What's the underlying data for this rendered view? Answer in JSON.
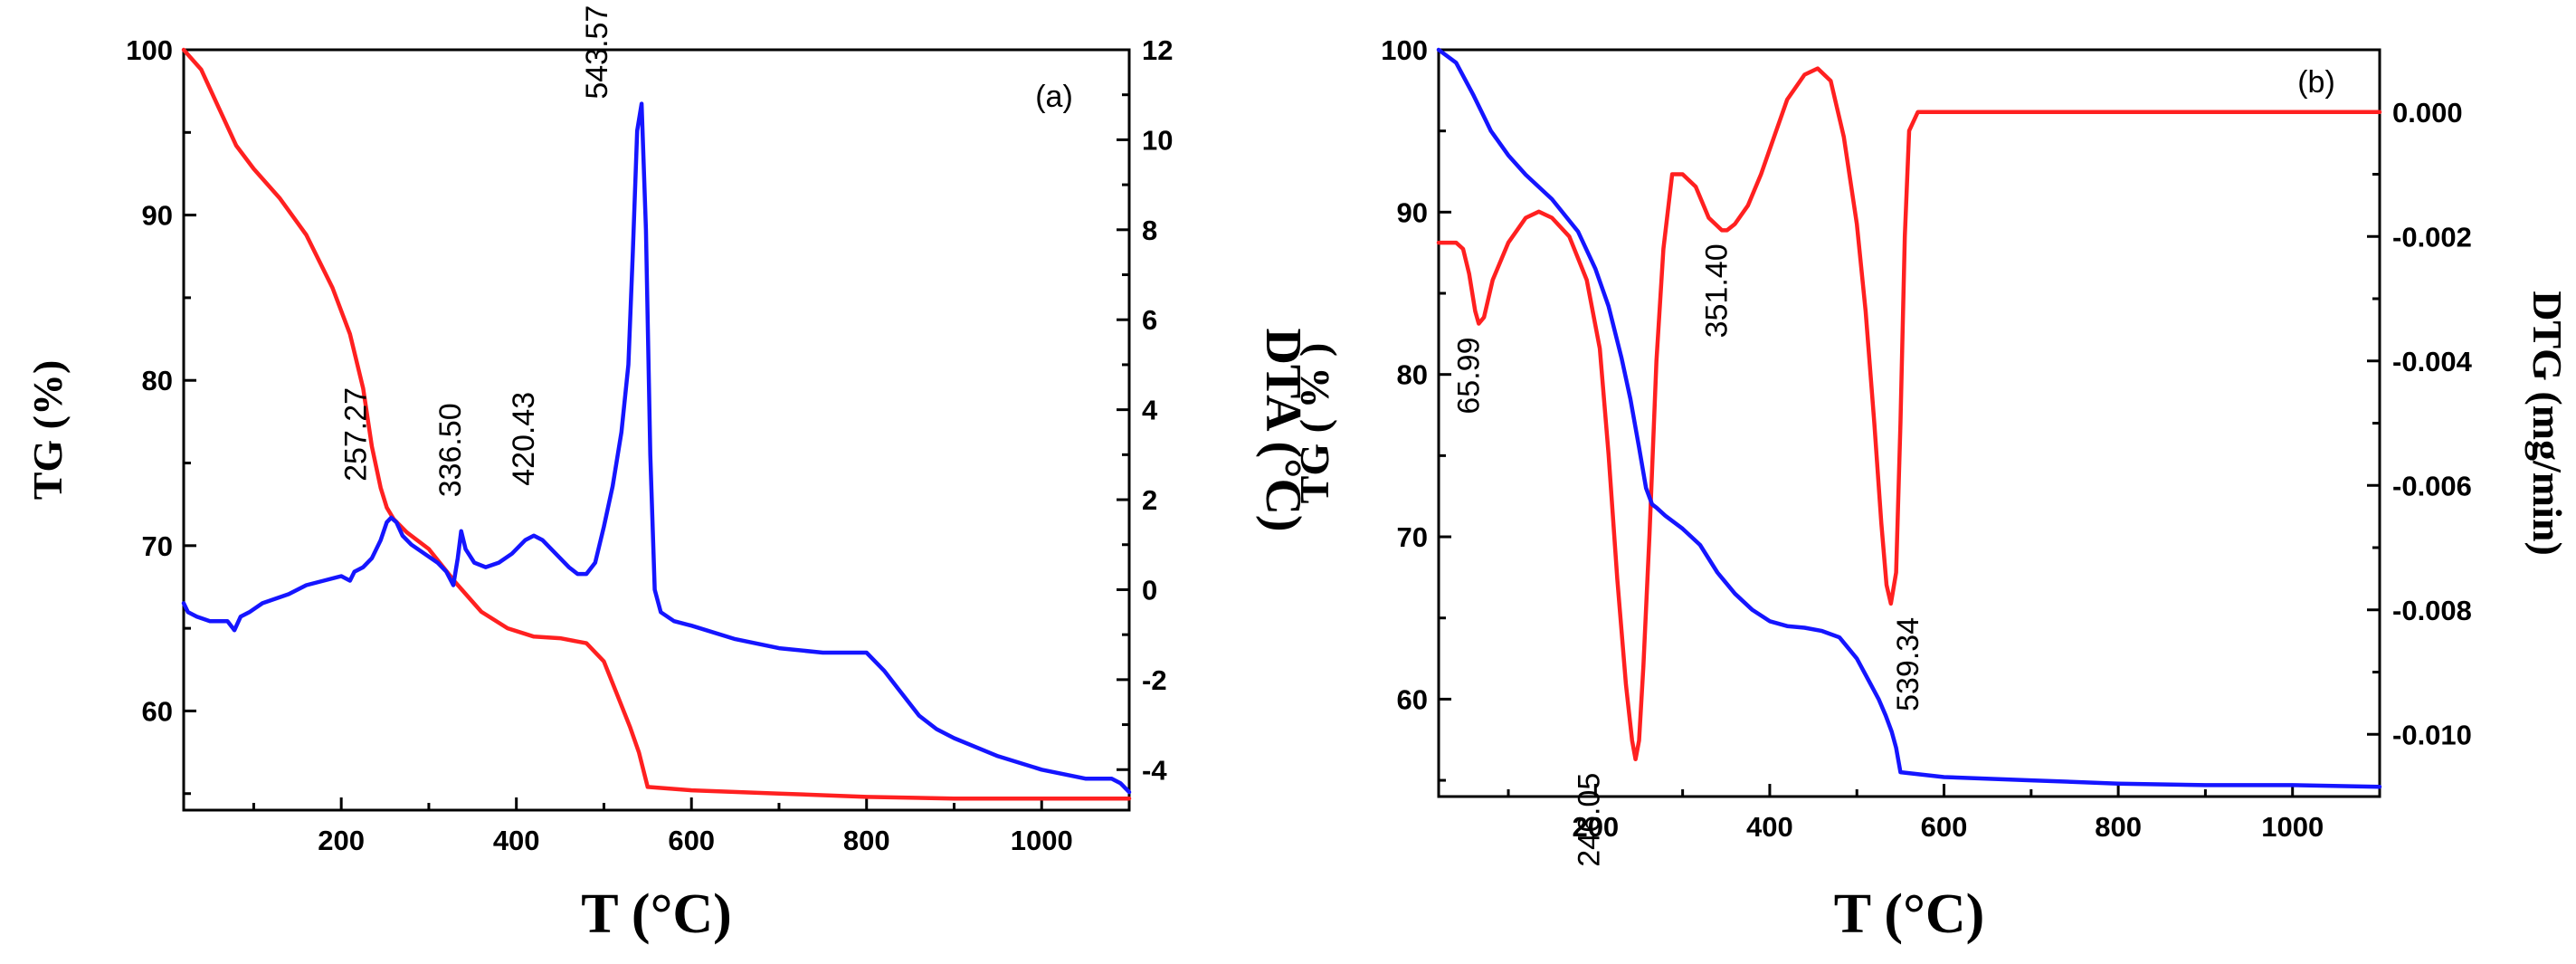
{
  "chart_data": [
    {
      "panel": "a",
      "panel_tag": "(a)",
      "type": "line",
      "xlabel": "T (°C)",
      "xlim": [
        20,
        1100
      ],
      "xticks": [
        200,
        400,
        600,
        800,
        1000
      ],
      "ylabel_left": "TG (%)",
      "ylim_left": [
        54,
        100
      ],
      "yticks_left": [
        60,
        70,
        80,
        90,
        100
      ],
      "ylabel_right": "DTA (°C)",
      "ylim_right": [
        -4.9,
        12
      ],
      "yticks_right": [
        -4,
        -2,
        0,
        2,
        4,
        6,
        8,
        10,
        12
      ],
      "annotations": [
        {
          "label": "257.27",
          "x": 257,
          "series": "DTA"
        },
        {
          "label": "336.50",
          "x": 336,
          "series": "DTA"
        },
        {
          "label": "420.43",
          "x": 420,
          "series": "DTA"
        },
        {
          "label": "543.57",
          "x": 543,
          "series": "DTA"
        }
      ],
      "series": [
        {
          "name": "TG",
          "axis": "left",
          "color": "#ff2020",
          "x": [
            20,
            40,
            60,
            80,
            100,
            130,
            160,
            190,
            210,
            225,
            235,
            245,
            252,
            260,
            275,
            300,
            330,
            360,
            390,
            420,
            450,
            480,
            500,
            515,
            530,
            540,
            550,
            600,
            700,
            800,
            900,
            1000,
            1100
          ],
          "y": [
            100,
            98.8,
            96.5,
            94.2,
            92.8,
            91.0,
            88.8,
            85.6,
            82.8,
            79.5,
            76.0,
            73.5,
            72.3,
            71.6,
            70.8,
            69.8,
            67.8,
            66.0,
            65.0,
            64.5,
            64.4,
            64.1,
            63.0,
            61.0,
            59.0,
            57.5,
            55.4,
            55.2,
            55.0,
            54.8,
            54.7,
            54.7,
            54.7
          ]
        },
        {
          "name": "DTA",
          "axis": "right",
          "color": "#1515ff",
          "x": [
            20,
            25,
            35,
            50,
            70,
            78,
            85,
            95,
            110,
            125,
            140,
            160,
            180,
            200,
            210,
            215,
            225,
            235,
            245,
            252,
            257,
            263,
            270,
            280,
            295,
            310,
            320,
            328,
            333,
            337,
            342,
            352,
            365,
            380,
            395,
            410,
            420,
            430,
            445,
            460,
            470,
            480,
            490,
            500,
            510,
            520,
            528,
            533,
            538,
            543,
            548,
            553,
            558,
            565,
            580,
            600,
            650,
            700,
            750,
            790,
            800,
            820,
            840,
            860,
            880,
            900,
            950,
            1000,
            1050,
            1080,
            1090,
            1100
          ],
          "y": [
            -0.3,
            -0.5,
            -0.6,
            -0.7,
            -0.7,
            -0.9,
            -0.6,
            -0.5,
            -0.3,
            -0.2,
            -0.1,
            0.1,
            0.2,
            0.3,
            0.2,
            0.4,
            0.5,
            0.7,
            1.1,
            1.5,
            1.6,
            1.5,
            1.2,
            1.0,
            0.8,
            0.6,
            0.4,
            0.1,
            0.7,
            1.3,
            0.9,
            0.6,
            0.5,
            0.6,
            0.8,
            1.1,
            1.2,
            1.1,
            0.8,
            0.5,
            0.35,
            0.35,
            0.6,
            1.4,
            2.3,
            3.5,
            5.0,
            7.5,
            10.2,
            10.8,
            8.0,
            3.0,
            0.0,
            -0.5,
            -0.7,
            -0.8,
            -1.1,
            -1.3,
            -1.4,
            -1.4,
            -1.4,
            -1.8,
            -2.3,
            -2.8,
            -3.1,
            -3.3,
            -3.7,
            -4.0,
            -4.2,
            -4.2,
            -4.3,
            -4.5
          ]
        }
      ]
    },
    {
      "panel": "b",
      "panel_tag": "(b)",
      "type": "line",
      "xlabel": "T (°C)",
      "xlim": [
        20,
        1100
      ],
      "xticks": [
        200,
        400,
        600,
        800,
        1000
      ],
      "ylabel_left": "TG ( % )",
      "ylim_left": [
        54,
        100
      ],
      "yticks_left": [
        60,
        70,
        80,
        90,
        100
      ],
      "ylabel_right": "DTG (mg/min)",
      "ylim_right": [
        -0.011,
        0.001
      ],
      "yticks_right": [
        0.0,
        -0.002,
        -0.004,
        -0.006,
        -0.008,
        -0.01
      ],
      "ytick_labels_right": [
        "0.000",
        "-0.002",
        "-0.004",
        "-0.006",
        "-0.008",
        "-0.010"
      ],
      "annotations": [
        {
          "label": "65.99",
          "x": 66,
          "series": "DTG"
        },
        {
          "label": "246.05",
          "x": 246,
          "series": "DTG"
        },
        {
          "label": "351.40",
          "x": 351,
          "series": "DTG"
        },
        {
          "label": "539.34",
          "x": 539,
          "series": "DTG"
        }
      ],
      "series": [
        {
          "name": "DTG",
          "axis": "right",
          "color": "#ff2020",
          "x": [
            20,
            40,
            48,
            55,
            62,
            66,
            72,
            82,
            100,
            120,
            135,
            150,
            170,
            190,
            205,
            215,
            225,
            235,
            242,
            246,
            250,
            255,
            262,
            270,
            278,
            288,
            300,
            315,
            330,
            345,
            351,
            360,
            375,
            390,
            405,
            420,
            440,
            455,
            470,
            485,
            500,
            510,
            520,
            528,
            534,
            539,
            545,
            550,
            555,
            560,
            570,
            600,
            700,
            750,
            800,
            850,
            900,
            1000,
            1100
          ],
          "y": [
            -0.0021,
            -0.0021,
            -0.0022,
            -0.0026,
            -0.0032,
            -0.0034,
            -0.0033,
            -0.0027,
            -0.0021,
            -0.0017,
            -0.0016,
            -0.0017,
            -0.002,
            -0.0027,
            -0.0038,
            -0.0055,
            -0.0075,
            -0.0092,
            -0.0101,
            -0.0104,
            -0.0101,
            -0.0089,
            -0.0068,
            -0.004,
            -0.0022,
            -0.001,
            -0.001,
            -0.0012,
            -0.0017,
            -0.0019,
            -0.0019,
            -0.0018,
            -0.0015,
            -0.001,
            -0.0004,
            0.0002,
            0.0006,
            0.0007,
            0.0005,
            -0.0004,
            -0.0018,
            -0.0032,
            -0.005,
            -0.0066,
            -0.0076,
            -0.0079,
            -0.0074,
            -0.005,
            -0.002,
            -0.0003,
            0.0,
            0.0,
            0.0,
            0.0,
            0.0,
            0.0,
            0.0,
            0.0,
            0.0
          ]
        },
        {
          "name": "TG",
          "axis": "left",
          "color": "#1515ff",
          "x": [
            20,
            40,
            60,
            80,
            100,
            120,
            150,
            180,
            200,
            215,
            230,
            240,
            250,
            258,
            265,
            270,
            280,
            300,
            320,
            340,
            360,
            380,
            400,
            420,
            440,
            460,
            480,
            500,
            515,
            525,
            533,
            540,
            545,
            550,
            600,
            700,
            800,
            900,
            1000,
            1100
          ],
          "y": [
            100,
            99.2,
            97.2,
            95.0,
            93.5,
            92.3,
            90.8,
            88.8,
            86.5,
            84.2,
            81.0,
            78.5,
            75.5,
            73.0,
            72.0,
            71.8,
            71.3,
            70.5,
            69.5,
            67.8,
            66.5,
            65.5,
            64.8,
            64.5,
            64.4,
            64.2,
            63.8,
            62.5,
            61.0,
            60.0,
            59.0,
            58.0,
            57.0,
            55.5,
            55.2,
            55.0,
            54.8,
            54.7,
            54.7,
            54.6
          ]
        }
      ]
    }
  ]
}
